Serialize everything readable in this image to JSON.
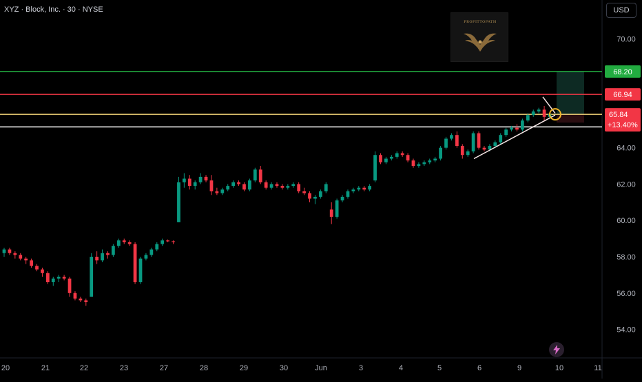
{
  "header": {
    "symbol_title": "XYZ · Block, Inc. · 30 · NYSE"
  },
  "currency_button": "USD",
  "logo": {
    "text": "PROFITTOPATH"
  },
  "chart_data": {
    "type": "candlestick",
    "y_axis": {
      "ticks": [
        54,
        56,
        58,
        60,
        62,
        64,
        66,
        68,
        70
      ],
      "ylim": [
        53.0,
        71.3
      ],
      "position": "right",
      "labels": [
        "54.00",
        "56.00",
        "58.00",
        "60.00",
        "62.00",
        "64.00",
        "",
        "",
        "70.00"
      ]
    },
    "x_axis": {
      "labels": [
        "20",
        "21",
        "22",
        "23",
        "27",
        "28",
        "29",
        "30",
        "Jun",
        "3",
        "4",
        "5",
        "6",
        "9",
        "10",
        "11"
      ]
    },
    "levels": [
      {
        "name": "target",
        "value": 68.2,
        "label": "68.20",
        "color": "#22ab40"
      },
      {
        "name": "stop",
        "value": 66.94,
        "label": "66.94",
        "color": "#f23645"
      },
      {
        "name": "entry",
        "value": 65.84,
        "label": "65.84",
        "color": "#f5d67a"
      },
      {
        "name": "support",
        "value": 65.15,
        "label": "",
        "color": "#ffffff"
      }
    ],
    "last_price": {
      "value": 65.84,
      "label": "65.84",
      "change": "+13.40%",
      "color": "#f23645"
    },
    "trendline": {
      "start": {
        "day": "6",
        "price": 63.4
      },
      "end": {
        "day": "10",
        "price": 65.8
      }
    },
    "ohlc": [
      [
        58.2,
        58.5,
        58.0,
        58.4
      ],
      [
        58.4,
        58.5,
        58.1,
        58.2
      ],
      [
        58.2,
        58.3,
        57.9,
        58.1
      ],
      [
        58.1,
        58.2,
        57.8,
        57.9
      ],
      [
        57.9,
        58.0,
        57.6,
        57.8
      ],
      [
        57.8,
        57.9,
        57.4,
        57.5
      ],
      [
        57.5,
        57.6,
        57.2,
        57.3
      ],
      [
        57.3,
        57.4,
        56.9,
        57.1
      ],
      [
        57.1,
        57.2,
        56.5,
        56.6
      ],
      [
        56.6,
        56.9,
        56.4,
        56.8
      ],
      [
        56.8,
        57.0,
        56.6,
        56.9
      ],
      [
        56.9,
        57.0,
        56.7,
        56.8
      ],
      [
        56.8,
        56.9,
        55.8,
        56.0
      ],
      [
        56.0,
        56.1,
        55.6,
        55.7
      ],
      [
        55.7,
        55.8,
        55.5,
        55.6
      ],
      [
        55.6,
        55.7,
        55.3,
        55.5
      ],
      [
        55.8,
        58.2,
        55.8,
        58.0
      ],
      [
        58.0,
        58.3,
        57.6,
        57.8
      ],
      [
        57.8,
        58.4,
        57.7,
        58.2
      ],
      [
        58.2,
        58.3,
        57.9,
        58.1
      ],
      [
        58.1,
        58.7,
        58.0,
        58.6
      ],
      [
        58.6,
        59.0,
        58.5,
        58.9
      ],
      [
        58.9,
        59.0,
        58.7,
        58.8
      ],
      [
        58.8,
        58.9,
        58.6,
        58.7
      ],
      [
        58.7,
        58.8,
        56.5,
        56.6
      ],
      [
        56.6,
        58.0,
        56.5,
        57.9
      ],
      [
        57.9,
        58.2,
        57.8,
        58.1
      ],
      [
        58.1,
        58.5,
        58.0,
        58.4
      ],
      [
        58.4,
        58.8,
        58.3,
        58.7
      ],
      [
        58.7,
        59.0,
        58.6,
        58.9
      ],
      [
        58.9,
        58.95,
        58.8,
        58.85
      ],
      [
        58.85,
        58.9,
        58.7,
        58.8
      ],
      [
        59.9,
        62.4,
        59.9,
        62.1
      ],
      [
        62.1,
        62.6,
        61.8,
        62.3
      ],
      [
        62.3,
        62.5,
        61.7,
        61.9
      ],
      [
        61.9,
        62.2,
        61.7,
        62.1
      ],
      [
        62.1,
        62.6,
        62.0,
        62.4
      ],
      [
        62.4,
        62.5,
        62.1,
        62.2
      ],
      [
        62.2,
        62.5,
        61.4,
        61.6
      ],
      [
        61.6,
        61.8,
        61.4,
        61.5
      ],
      [
        61.5,
        61.8,
        61.4,
        61.7
      ],
      [
        61.7,
        62.0,
        61.6,
        61.9
      ],
      [
        61.9,
        62.2,
        61.8,
        62.1
      ],
      [
        62.1,
        62.2,
        61.9,
        62.0
      ],
      [
        62.0,
        62.1,
        61.6,
        61.7
      ],
      [
        61.7,
        62.3,
        61.6,
        62.2
      ],
      [
        62.2,
        62.9,
        62.1,
        62.8
      ],
      [
        62.8,
        63.0,
        62.0,
        62.1
      ],
      [
        62.1,
        62.2,
        61.7,
        61.8
      ],
      [
        61.8,
        62.1,
        61.7,
        62.0
      ],
      [
        62.0,
        62.1,
        61.8,
        61.9
      ],
      [
        61.9,
        62.0,
        61.7,
        61.8
      ],
      [
        61.8,
        62.0,
        61.7,
        61.9
      ],
      [
        61.9,
        62.1,
        61.8,
        62.0
      ],
      [
        62.0,
        62.1,
        61.5,
        61.6
      ],
      [
        61.6,
        61.8,
        61.4,
        61.5
      ],
      [
        61.5,
        61.6,
        61.0,
        61.2
      ],
      [
        61.2,
        61.4,
        60.9,
        61.3
      ],
      [
        61.3,
        61.7,
        61.2,
        61.6
      ],
      [
        61.6,
        62.1,
        61.5,
        62.0
      ],
      [
        60.6,
        61.0,
        59.8,
        60.2
      ],
      [
        60.2,
        61.2,
        60.1,
        61.1
      ],
      [
        61.1,
        61.4,
        61.0,
        61.3
      ],
      [
        61.3,
        61.7,
        61.2,
        61.6
      ],
      [
        61.6,
        61.8,
        61.5,
        61.7
      ],
      [
        61.7,
        61.9,
        61.6,
        61.8
      ],
      [
        61.8,
        61.9,
        61.6,
        61.7
      ],
      [
        61.7,
        62.0,
        61.6,
        61.9
      ],
      [
        62.2,
        63.8,
        62.1,
        63.6
      ],
      [
        63.6,
        63.7,
        63.1,
        63.2
      ],
      [
        63.2,
        63.5,
        63.1,
        63.4
      ],
      [
        63.4,
        63.6,
        63.3,
        63.5
      ],
      [
        63.5,
        63.8,
        63.4,
        63.7
      ],
      [
        63.7,
        63.8,
        63.5,
        63.6
      ],
      [
        63.6,
        63.7,
        63.2,
        63.3
      ],
      [
        63.3,
        63.4,
        62.9,
        63.0
      ],
      [
        63.0,
        63.2,
        62.9,
        63.1
      ],
      [
        63.1,
        63.3,
        63.0,
        63.2
      ],
      [
        63.2,
        63.4,
        63.1,
        63.3
      ],
      [
        63.3,
        63.5,
        63.2,
        63.4
      ],
      [
        63.4,
        64.1,
        63.3,
        64.0
      ],
      [
        64.0,
        64.6,
        63.9,
        64.5
      ],
      [
        64.5,
        64.8,
        64.4,
        64.7
      ],
      [
        64.7,
        64.9,
        64.0,
        64.1
      ],
      [
        64.1,
        64.2,
        63.4,
        63.6
      ],
      [
        63.6,
        63.9,
        63.5,
        63.8
      ],
      [
        63.8,
        64.9,
        63.7,
        64.8
      ],
      [
        64.8,
        64.9,
        63.9,
        64.0
      ],
      [
        64.0,
        64.1,
        63.8,
        63.9
      ],
      [
        63.9,
        64.2,
        63.8,
        64.1
      ],
      [
        64.1,
        64.4,
        64.0,
        64.3
      ],
      [
        64.3,
        64.8,
        64.2,
        64.7
      ],
      [
        64.7,
        65.1,
        64.6,
        65.0
      ],
      [
        65.0,
        65.2,
        64.9,
        65.1
      ],
      [
        65.1,
        65.3,
        64.9,
        65.0
      ],
      [
        65.0,
        65.6,
        64.9,
        65.5
      ],
      [
        65.5,
        65.9,
        65.4,
        65.8
      ],
      [
        65.8,
        66.1,
        65.7,
        66.0
      ],
      [
        66.0,
        66.2,
        65.9,
        66.1
      ],
      [
        66.1,
        66.3,
        65.5,
        65.7
      ],
      [
        65.7,
        65.9,
        65.6,
        65.84
      ]
    ]
  }
}
